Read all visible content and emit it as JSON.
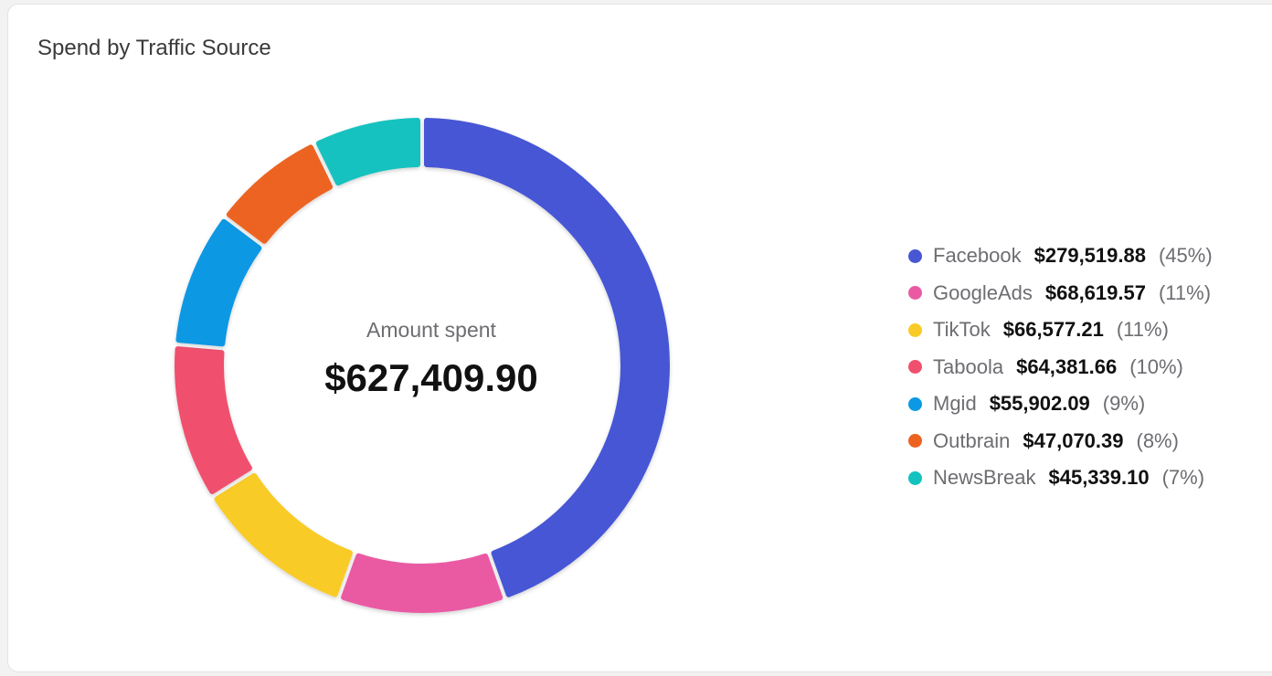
{
  "chart_data": {
    "type": "pie",
    "title": "Spend by Traffic Source",
    "center_label": "Amount spent",
    "center_value": "$627,409.90",
    "legend_position": "right",
    "categories": [
      "Facebook",
      "GoogleAds",
      "TikTok",
      "Taboola",
      "Mgid",
      "Outbrain",
      "NewsBreak"
    ],
    "values": [
      279519.88,
      68619.57,
      66577.21,
      64381.66,
      55902.09,
      47070.39,
      45339.1
    ],
    "amount_labels": [
      "$279,519.88",
      "$68,619.57",
      "$66,577.21",
      "$64,381.66",
      "$55,902.09",
      "$47,070.39",
      "$45,339.10"
    ],
    "percent_labels": [
      "(45%)",
      "(11%)",
      "(11%)",
      "(10%)",
      "(9%)",
      "(8%)",
      "(7%)"
    ],
    "colors": [
      "#4757d4",
      "#ea5aa3",
      "#f9cb27",
      "#f0506e",
      "#0b98e4",
      "#ec6320",
      "#13c2bf"
    ]
  }
}
